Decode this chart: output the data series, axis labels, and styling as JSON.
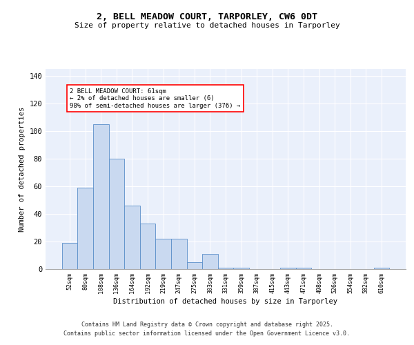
{
  "title": "2, BELL MEADOW COURT, TARPORLEY, CW6 0DT",
  "subtitle": "Size of property relative to detached houses in Tarporley",
  "xlabel": "Distribution of detached houses by size in Tarporley",
  "ylabel": "Number of detached properties",
  "bar_color": "#c9d9f0",
  "bar_edge_color": "#5b8fc9",
  "background_color": "#eaf0fb",
  "categories": [
    "52sqm",
    "80sqm",
    "108sqm",
    "136sqm",
    "164sqm",
    "192sqm",
    "219sqm",
    "247sqm",
    "275sqm",
    "303sqm",
    "331sqm",
    "359sqm",
    "387sqm",
    "415sqm",
    "443sqm",
    "471sqm",
    "498sqm",
    "526sqm",
    "554sqm",
    "582sqm",
    "610sqm"
  ],
  "values": [
    19,
    59,
    105,
    80,
    46,
    33,
    22,
    22,
    5,
    11,
    1,
    1,
    0,
    0,
    1,
    1,
    0,
    0,
    0,
    0,
    1
  ],
  "ylim": [
    0,
    145
  ],
  "yticks": [
    0,
    20,
    40,
    60,
    80,
    100,
    120,
    140
  ],
  "annotation_text": "2 BELL MEADOW COURT: 61sqm\n← 2% of detached houses are smaller (6)\n98% of semi-detached houses are larger (376) →",
  "footer1": "Contains HM Land Registry data © Crown copyright and database right 2025.",
  "footer2": "Contains public sector information licensed under the Open Government Licence v3.0."
}
